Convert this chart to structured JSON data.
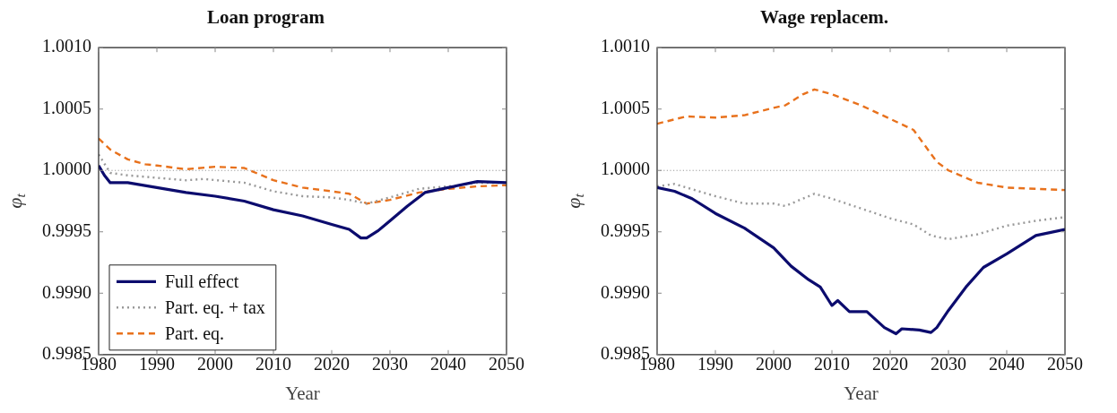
{
  "chart_data": [
    {
      "type": "line",
      "title": "Loan program",
      "xlabel": "Year",
      "ylabel": "φ$_{t}$",
      "xlim": [
        1980,
        2050
      ],
      "xticks": [
        1980,
        1990,
        2000,
        2010,
        2020,
        2030,
        2040,
        2050
      ],
      "ylim": [
        0.9985,
        1.001
      ],
      "yticks": [
        {
          "value": 0.9985,
          "label": "0.9985"
        },
        {
          "value": 0.999,
          "label": "0.9990"
        },
        {
          "value": 0.9995,
          "label": "0.9995"
        },
        {
          "value": 1.0,
          "label": "1.0000"
        },
        {
          "value": 1.0005,
          "label": "1.0005"
        },
        {
          "value": 1.001,
          "label": "1.0010"
        }
      ],
      "grid": false,
      "legend": "bottom left",
      "marker": "none",
      "ref_lines": [
        {
          "axis": "y",
          "value": 1.0,
          "color": "#999999",
          "line_style": "dotted"
        }
      ],
      "series": [
        {
          "name": "Full effect",
          "color": "#0c0c6e",
          "line_style": "solid",
          "x": [
            1980,
            1981,
            1982,
            1985,
            1990,
            1995,
            2000,
            2005,
            2010,
            2015,
            2020,
            2023,
            2025,
            2026,
            2028,
            2030,
            2033,
            2036,
            2040,
            2045,
            2050
          ],
          "values": [
            1.00004,
            0.99996,
            0.9999,
            0.9999,
            0.99986,
            0.99982,
            0.99979,
            0.99975,
            0.99968,
            0.99963,
            0.99956,
            0.99952,
            0.99945,
            0.99945,
            0.99951,
            0.99959,
            0.99971,
            0.99982,
            0.99986,
            0.99991,
            0.9999
          ]
        },
        {
          "name": "Part. eq. + tax",
          "color": "#999999",
          "line_style": "dotted",
          "x": [
            1980,
            1982,
            1985,
            1990,
            1995,
            1998,
            2005,
            2010,
            2015,
            2020,
            2023,
            2026,
            2030,
            2035,
            2040,
            2045,
            2050
          ],
          "values": [
            1.00013,
            0.99998,
            0.99996,
            0.99994,
            0.99992,
            0.99993,
            0.9999,
            0.99983,
            0.99979,
            0.99978,
            0.99976,
            0.99973,
            0.99978,
            0.99985,
            0.99987,
            0.9999,
            0.9999
          ]
        },
        {
          "name": "Part. eq.",
          "color": "#e8711c",
          "line_style": "dashed",
          "x": [
            1980,
            1982,
            1985,
            1988,
            1990,
            1995,
            2000,
            2005,
            2010,
            2015,
            2020,
            2023,
            2026,
            2030,
            2035,
            2040,
            2045,
            2050
          ],
          "values": [
            1.00026,
            1.00017,
            1.00009,
            1.00005,
            1.00004,
            1.00001,
            1.00003,
            1.00002,
            0.99992,
            0.99986,
            0.99983,
            0.99981,
            0.99973,
            0.99976,
            0.99982,
            0.99985,
            0.99987,
            0.99988
          ]
        }
      ]
    },
    {
      "type": "line",
      "title": "Wage replacem.",
      "xlabel": "Year",
      "ylabel": "φ$_{t}$",
      "xlim": [
        1980,
        2050
      ],
      "xticks": [
        1980,
        1990,
        2000,
        2010,
        2020,
        2030,
        2040,
        2050
      ],
      "ylim": [
        0.9985,
        1.001
      ],
      "yticks": [
        {
          "value": 0.9985,
          "label": "0.9985"
        },
        {
          "value": 0.999,
          "label": "0.9990"
        },
        {
          "value": 0.9995,
          "label": "0.9995"
        },
        {
          "value": 1.0,
          "label": "1.0000"
        },
        {
          "value": 1.0005,
          "label": "1.0005"
        },
        {
          "value": 1.001,
          "label": "1.0010"
        }
      ],
      "grid": false,
      "marker": "none",
      "ref_lines": [
        {
          "axis": "y",
          "value": 1.0,
          "color": "#999999",
          "line_style": "dotted"
        }
      ],
      "series": [
        {
          "color": "#0c0c6e",
          "line_style": "solid",
          "x": [
            1980,
            1983,
            1986,
            1990,
            1995,
            2000,
            2003,
            2006,
            2008,
            2010,
            2011,
            2013,
            2016,
            2019,
            2021,
            2022,
            2025,
            2027,
            2028,
            2030,
            2033,
            2036,
            2040,
            2045,
            2050
          ],
          "values": [
            0.99986,
            0.99983,
            0.99977,
            0.99965,
            0.99953,
            0.99937,
            0.99922,
            0.99911,
            0.99905,
            0.9989,
            0.99894,
            0.99885,
            0.99885,
            0.99872,
            0.99867,
            0.99871,
            0.9987,
            0.99868,
            0.99872,
            0.99886,
            0.99905,
            0.99921,
            0.99932,
            0.99947,
            0.99952
          ]
        },
        {
          "color": "#999999",
          "line_style": "dotted",
          "x": [
            1980,
            1983,
            1990,
            1995,
            2000,
            2002,
            2007,
            2010,
            2015,
            2020,
            2024,
            2027,
            2030,
            2035,
            2040,
            2045,
            2050
          ],
          "values": [
            0.99987,
            0.99989,
            0.99979,
            0.99973,
            0.99973,
            0.99971,
            0.99981,
            0.99977,
            0.99969,
            0.99961,
            0.99956,
            0.99947,
            0.99944,
            0.99948,
            0.99955,
            0.99959,
            0.99962
          ]
        },
        {
          "color": "#e8711c",
          "line_style": "dashed",
          "x": [
            1980,
            1985,
            1990,
            1995,
            2000,
            2002,
            2005,
            2007,
            2010,
            2015,
            2020,
            2024,
            2026,
            2028,
            2030,
            2035,
            2040,
            2045,
            2050
          ],
          "values": [
            1.00038,
            1.00044,
            1.00043,
            1.00045,
            1.00051,
            1.00053,
            1.00062,
            1.00066,
            1.00062,
            1.00053,
            1.00042,
            1.00033,
            1.0002,
            1.00007,
            1.0,
            0.9999,
            0.99986,
            0.99985,
            0.99984
          ]
        }
      ]
    }
  ]
}
